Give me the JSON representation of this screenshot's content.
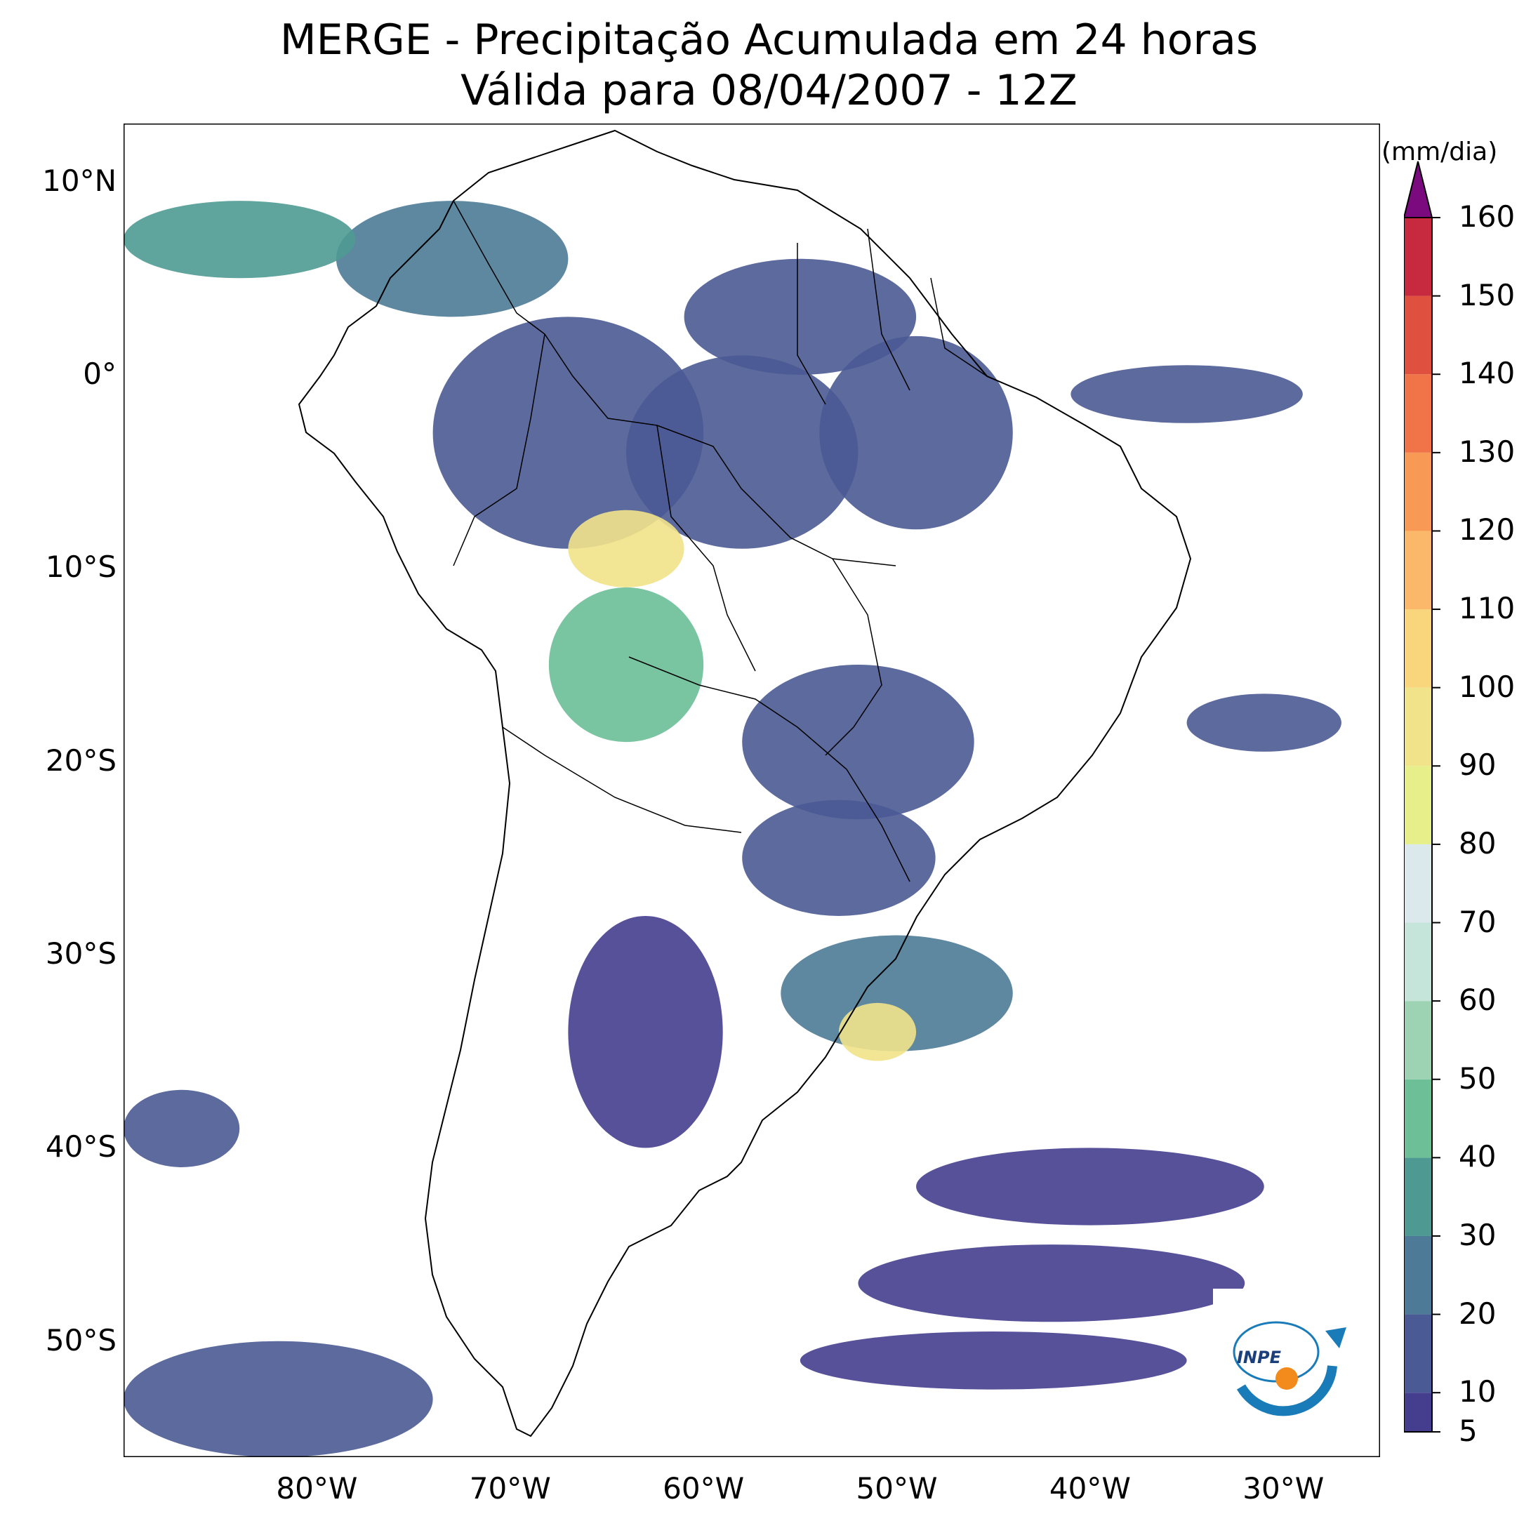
{
  "title": {
    "line1": "MERGE - Precipitação Acumulada em 24 horas",
    "line2": "Válida para 08/04/2007 - 12Z"
  },
  "map": {
    "lon_range": [
      -90,
      -25
    ],
    "lat_range": [
      -56,
      13
    ],
    "lat_ticks": [
      {
        "value": 10,
        "label": "10°N"
      },
      {
        "value": 0,
        "label": "0°"
      },
      {
        "value": -10,
        "label": "10°S"
      },
      {
        "value": -20,
        "label": "20°S"
      },
      {
        "value": -30,
        "label": "30°S"
      },
      {
        "value": -40,
        "label": "40°S"
      },
      {
        "value": -50,
        "label": "50°S"
      }
    ],
    "lon_ticks": [
      {
        "value": -80,
        "label": "80°W"
      },
      {
        "value": -70,
        "label": "70°W"
      },
      {
        "value": -60,
        "label": "60°W"
      },
      {
        "value": -50,
        "label": "50°W"
      },
      {
        "value": -40,
        "label": "40°W"
      },
      {
        "value": -30,
        "label": "30°W"
      }
    ]
  },
  "colorbar": {
    "units": "(mm/dia)",
    "min": 5,
    "max": 160,
    "extend": "max",
    "tick_labels": [
      "5",
      "10",
      "20",
      "30",
      "40",
      "50",
      "60",
      "70",
      "80",
      "90",
      "100",
      "110",
      "120",
      "130",
      "140",
      "150",
      "160"
    ],
    "tick_values": [
      5,
      10,
      20,
      30,
      40,
      50,
      60,
      70,
      80,
      90,
      100,
      110,
      120,
      130,
      140,
      150,
      160
    ],
    "colors": [
      "#453e8f",
      "#4a5a94",
      "#4d7a96",
      "#4e9a92",
      "#6cbf97",
      "#9dd3b3",
      "#c6e5da",
      "#dce9ec",
      "#e6ef8a",
      "#f1e38a",
      "#f9d57c",
      "#fbb86a",
      "#f89a56",
      "#f07447",
      "#e0503f",
      "#c7293f",
      "#b51c44"
    ],
    "over_color": "#7b0a7e"
  },
  "logo": {
    "text": "INPE"
  },
  "precip_regions": [
    {
      "name": "amazon-west",
      "lon": -67,
      "lat": -3,
      "rx": 7,
      "ry": 6,
      "mm": 15
    },
    {
      "name": "amazon-central",
      "lon": -58,
      "lat": -4,
      "rx": 6,
      "ry": 5,
      "mm": 12
    },
    {
      "name": "amazon-east",
      "lon": -49,
      "lat": -3,
      "rx": 5,
      "ry": 5,
      "mm": 14
    },
    {
      "name": "guianas",
      "lon": -55,
      "lat": 3,
      "rx": 6,
      "ry": 3,
      "mm": 10
    },
    {
      "name": "colombia",
      "lon": -73,
      "lat": 6,
      "rx": 6,
      "ry": 3,
      "mm": 20
    },
    {
      "name": "caribbean-pacific",
      "lon": -84,
      "lat": 7,
      "rx": 6,
      "ry": 2,
      "mm": 30
    },
    {
      "name": "rondonia",
      "lon": -64,
      "lat": -9,
      "rx": 3,
      "ry": 2,
      "mm": 90
    },
    {
      "name": "bolivia",
      "lon": -64,
      "lat": -15,
      "rx": 4,
      "ry": 4,
      "mm": 45
    },
    {
      "name": "mato-grosso-sul",
      "lon": -52,
      "lat": -19,
      "rx": 6,
      "ry": 4,
      "mm": 15
    },
    {
      "name": "parana",
      "lon": -53,
      "lat": -25,
      "rx": 5,
      "ry": 3,
      "mm": 15
    },
    {
      "name": "rio-grande-sul",
      "lon": -50,
      "lat": -32,
      "rx": 6,
      "ry": 3,
      "mm": 25
    },
    {
      "name": "uruguay-coast",
      "lon": -51,
      "lat": -34,
      "rx": 2,
      "ry": 1.5,
      "mm": 95
    },
    {
      "name": "argentina-pampas",
      "lon": -63,
      "lat": -34,
      "rx": 4,
      "ry": 6,
      "mm": 8
    },
    {
      "name": "south-atlantic-band-1",
      "lon": -40,
      "lat": -42,
      "rx": 9,
      "ry": 2,
      "mm": 8
    },
    {
      "name": "south-atlantic-band-2",
      "lon": -42,
      "lat": -47,
      "rx": 10,
      "ry": 2,
      "mm": 8
    },
    {
      "name": "south-atlantic-band-3",
      "lon": -45,
      "lat": -51,
      "rx": 10,
      "ry": 1.5,
      "mm": 8
    },
    {
      "name": "south-pacific",
      "lon": -82,
      "lat": -53,
      "rx": 8,
      "ry": 3,
      "mm": 12
    },
    {
      "name": "pacific-west",
      "lon": -87,
      "lat": -39,
      "rx": 3,
      "ry": 2,
      "mm": 10
    },
    {
      "name": "atlantic-equatorial",
      "lon": -35,
      "lat": -1,
      "rx": 6,
      "ry": 1.5,
      "mm": 10
    },
    {
      "name": "atlantic-ne",
      "lon": -31,
      "lat": -18,
      "rx": 4,
      "ry": 1.5,
      "mm": 10
    }
  ]
}
